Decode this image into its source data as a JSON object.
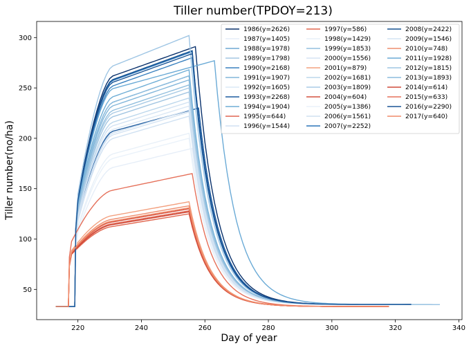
{
  "chart_data": {
    "type": "line",
    "title": "Tiller number(TPDOY=213)",
    "xlabel": "Day of year",
    "ylabel": "Tiller number(no/ha)",
    "xlim": [
      207,
      341
    ],
    "ylim": [
      20,
      316
    ],
    "xticks": [
      220,
      240,
      260,
      280,
      300,
      320,
      340
    ],
    "yticks": [
      50,
      100,
      150,
      200,
      250,
      300
    ],
    "grid": false,
    "legend_position": "top-right",
    "legend_columns": 3,
    "series": [
      {
        "name": "1986(y=2626)",
        "color": "#08306b",
        "start": 213,
        "emerge": 219,
        "plateau": 291,
        "peak_day": 257,
        "end_day": 325,
        "floor": 35,
        "rise": 0.55
      },
      {
        "name": "1987(y=1405)",
        "color": "#e6eef8",
        "start": 213,
        "emerge": 219,
        "plateau": 190,
        "peak_day": 256,
        "end_day": 325,
        "floor": 35,
        "rise": 0.6
      },
      {
        "name": "1988(y=1978)",
        "color": "#6fa8d4",
        "start": 213,
        "emerge": 219,
        "plateau": 262,
        "peak_day": 255,
        "end_day": 325,
        "floor": 35,
        "rise": 0.58
      },
      {
        "name": "1989(y=1798)",
        "color": "#a3c6e2",
        "start": 213,
        "emerge": 219,
        "plateau": 246,
        "peak_day": 255,
        "end_day": 325,
        "floor": 35,
        "rise": 0.58
      },
      {
        "name": "1990(y=2168)",
        "color": "#3a81bf",
        "start": 213,
        "emerge": 219,
        "plateau": 280,
        "peak_day": 256,
        "end_day": 325,
        "floor": 35,
        "rise": 0.56
      },
      {
        "name": "1991(y=1907)",
        "color": "#82b6da",
        "start": 213,
        "emerge": 219,
        "plateau": 258,
        "peak_day": 255,
        "end_day": 325,
        "floor": 35,
        "rise": 0.58
      },
      {
        "name": "1992(y=1605)",
        "color": "#dbe8f5",
        "start": 213,
        "emerge": 219,
        "plateau": 232,
        "peak_day": 255,
        "end_day": 325,
        "floor": 35,
        "rise": 0.6
      },
      {
        "name": "1993(y=2268)",
        "color": "#1c5a9e",
        "start": 213,
        "emerge": 219,
        "plateau": 230,
        "peak_day": 258,
        "end_day": 325,
        "floor": 35,
        "rise": 0.4
      },
      {
        "name": "1994(y=1904)",
        "color": "#6faed6",
        "start": 213,
        "emerge": 219,
        "plateau": 268,
        "peak_day": 255,
        "end_day": 325,
        "floor": 35,
        "rise": 0.58
      },
      {
        "name": "1995(y=644)",
        "color": "#e16550",
        "start": 213,
        "emerge": 217,
        "plateau": 128,
        "peak_day": 255,
        "end_day": 318,
        "floor": 33,
        "rise": 0.7
      },
      {
        "name": "1996(y=1544)",
        "color": "#d0e1f2",
        "start": 213,
        "emerge": 219,
        "plateau": 222,
        "peak_day": 255,
        "end_day": 325,
        "floor": 35,
        "rise": 0.6
      },
      {
        "name": "1997(y=586)",
        "color": "#e1664f",
        "start": 213,
        "emerge": 217,
        "plateau": 125,
        "peak_day": 255,
        "end_day": 318,
        "floor": 33,
        "rise": 0.7
      },
      {
        "name": "1998(y=1429)",
        "color": "#e8f0f8",
        "start": 213,
        "emerge": 219,
        "plateau": 205,
        "peak_day": 255,
        "end_day": 325,
        "floor": 35,
        "rise": 0.6
      },
      {
        "name": "1999(y=1853)",
        "color": "#92bfde",
        "start": 213,
        "emerge": 219,
        "plateau": 253,
        "peak_day": 255,
        "end_day": 325,
        "floor": 35,
        "rise": 0.58
      },
      {
        "name": "2000(y=1556)",
        "color": "#d5e4f3",
        "start": 213,
        "emerge": 219,
        "plateau": 226,
        "peak_day": 255,
        "end_day": 325,
        "floor": 35,
        "rise": 0.6
      },
      {
        "name": "2001(y=879)",
        "color": "#f3a07f",
        "start": 213,
        "emerge": 217,
        "plateau": 137,
        "peak_day": 255,
        "end_day": 318,
        "floor": 33,
        "rise": 0.7
      },
      {
        "name": "2002(y=1681)",
        "color": "#bcd7ec",
        "start": 213,
        "emerge": 219,
        "plateau": 240,
        "peak_day": 255,
        "end_day": 325,
        "floor": 35,
        "rise": 0.6
      },
      {
        "name": "2003(y=1809)",
        "color": "#a9cbe5",
        "start": 213,
        "emerge": 219,
        "plateau": 250,
        "peak_day": 255,
        "end_day": 325,
        "floor": 35,
        "rise": 0.58
      },
      {
        "name": "2004(y=604)",
        "color": "#d4503e",
        "start": 213,
        "emerge": 217,
        "plateau": 130,
        "peak_day": 255,
        "end_day": 318,
        "floor": 33,
        "rise": 0.7
      },
      {
        "name": "2005(y=1386)",
        "color": "#eaf2fa",
        "start": 213,
        "emerge": 219,
        "plateau": 200,
        "peak_day": 255,
        "end_day": 325,
        "floor": 35,
        "rise": 0.6
      },
      {
        "name": "2006(y=1561)",
        "color": "#cfe0f1",
        "start": 213,
        "emerge": 219,
        "plateau": 228,
        "peak_day": 255,
        "end_day": 325,
        "floor": 35,
        "rise": 0.6
      },
      {
        "name": "2007(y=2252)",
        "color": "#2a73b8",
        "start": 213,
        "emerge": 219,
        "plateau": 286,
        "peak_day": 256,
        "end_day": 325,
        "floor": 35,
        "rise": 0.56
      },
      {
        "name": "2008(y=2422)",
        "color": "#14508f",
        "start": 213,
        "emerge": 219,
        "plateau": 287,
        "peak_day": 256,
        "end_day": 325,
        "floor": 35,
        "rise": 0.56
      },
      {
        "name": "2009(y=1546)",
        "color": "#d3e3f3",
        "start": 213,
        "emerge": 219,
        "plateau": 236,
        "peak_day": 255,
        "end_day": 325,
        "floor": 35,
        "rise": 0.6
      },
      {
        "name": "2010(y=748)",
        "color": "#ee8e6f",
        "start": 213,
        "emerge": 217,
        "plateau": 133,
        "peak_day": 255,
        "end_day": 318,
        "floor": 33,
        "rise": 0.7
      },
      {
        "name": "2011(y=1928)",
        "color": "#6aaad6",
        "start": 213,
        "emerge": 219,
        "plateau": 277,
        "peak_day": 263,
        "end_day": 334,
        "floor": 35,
        "rise": 0.58
      },
      {
        "name": "2012(y=1815)",
        "color": "#9ec5e4",
        "start": 213,
        "emerge": 219,
        "plateau": 302,
        "peak_day": 255,
        "end_day": 334,
        "floor": 35,
        "rise": 0.9
      },
      {
        "name": "2013(y=1893)",
        "color": "#8cbcdd",
        "start": 213,
        "emerge": 219,
        "plateau": 262,
        "peak_day": 255,
        "end_day": 325,
        "floor": 35,
        "rise": 0.58
      },
      {
        "name": "2014(y=614)",
        "color": "#cf4a3a",
        "start": 213,
        "emerge": 217,
        "plateau": 127,
        "peak_day": 255,
        "end_day": 318,
        "floor": 33,
        "rise": 0.7
      },
      {
        "name": "2015(y=633)",
        "color": "#e5705a",
        "start": 213,
        "emerge": 217,
        "plateau": 165,
        "peak_day": 256,
        "end_day": 318,
        "floor": 33,
        "rise": 0.9
      },
      {
        "name": "2016(y=2290)",
        "color": "#1b5596",
        "start": 213,
        "emerge": 219,
        "plateau": 284,
        "peak_day": 256,
        "end_day": 325,
        "floor": 35,
        "rise": 0.56
      },
      {
        "name": "2017(y=640)",
        "color": "#f08a68",
        "start": 213,
        "emerge": 217,
        "plateau": 131,
        "peak_day": 255,
        "end_day": 318,
        "floor": 33,
        "rise": 0.7
      }
    ]
  }
}
